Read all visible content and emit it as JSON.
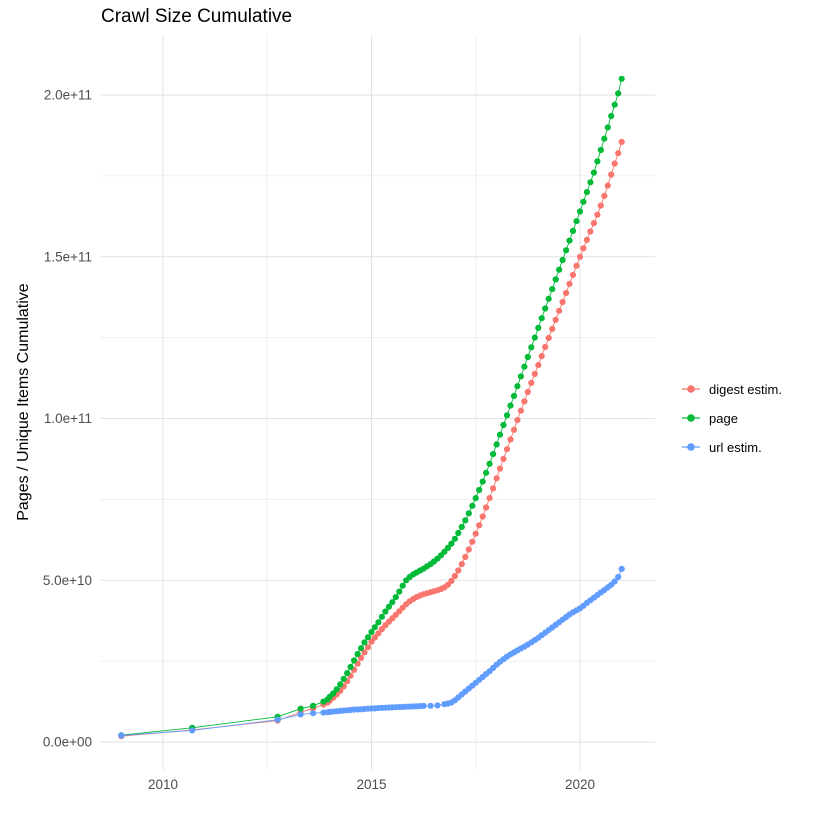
{
  "chart_data": {
    "type": "line",
    "title": "Crawl Size Cumulative",
    "xlabel": "",
    "ylabel": "Pages / Unique Items Cumulative",
    "grid": true,
    "legend_position": "right",
    "y_unit": "1e9 (point y-values are in billions; 205 = 2.05e+11)",
    "xlim": [
      2008.5,
      2021.8
    ],
    "ylim_e9": [
      -9,
      219
    ],
    "x_ticks": {
      "values": [
        2010,
        2015,
        2020
      ],
      "labels": [
        "2010",
        "2015",
        "2020"
      ]
    },
    "y_ticks": {
      "values_e9": [
        0,
        50,
        100,
        150,
        200
      ],
      "labels": [
        "0.0e+00",
        "5.0e+10",
        "1.0e+11",
        "1.5e+11",
        "2.0e+11"
      ]
    },
    "x_minor": [
      2012.5,
      2017.5
    ],
    "y_minor_e9": [
      25,
      75,
      125,
      175
    ],
    "colors": {
      "digest": "#F8766D",
      "page": "#00BA38",
      "url": "#619CFF",
      "grid_major": "#E2E2E2",
      "grid_minor": "#F0F0F0",
      "tick_text": "#4D4D4D"
    },
    "series": [
      {
        "name": "digest estim.",
        "color": "#F8766D",
        "points": [
          [
            2009,
            1.8
          ],
          [
            2010.7,
            3.7
          ],
          [
            2012.75,
            6.6
          ],
          [
            2013.3,
            9.2
          ],
          [
            2013.6,
            10.4
          ],
          [
            2013.85,
            11.6
          ],
          [
            2013.95,
            12.2
          ],
          [
            2014,
            12.8
          ],
          [
            2014.083,
            13.7
          ],
          [
            2014.167,
            14.7
          ],
          [
            2014.25,
            15.8
          ],
          [
            2014.333,
            17.2
          ],
          [
            2014.417,
            18.8
          ],
          [
            2014.5,
            20.5
          ],
          [
            2014.583,
            22.3
          ],
          [
            2014.667,
            24.2
          ],
          [
            2014.75,
            26
          ],
          [
            2014.833,
            27.7
          ],
          [
            2014.917,
            29.3
          ],
          [
            2015,
            31
          ],
          [
            2015.083,
            32.3
          ],
          [
            2015.167,
            33.6
          ],
          [
            2015.25,
            34.9
          ],
          [
            2015.333,
            36.1
          ],
          [
            2015.417,
            37.2
          ],
          [
            2015.5,
            38.2
          ],
          [
            2015.583,
            39.3
          ],
          [
            2015.667,
            40.4
          ],
          [
            2015.75,
            41.5
          ],
          [
            2015.833,
            42.6
          ],
          [
            2015.917,
            43.5
          ],
          [
            2016,
            44.2
          ],
          [
            2016.083,
            44.8
          ],
          [
            2016.167,
            45.3
          ],
          [
            2016.25,
            45.7
          ],
          [
            2016.333,
            46
          ],
          [
            2016.417,
            46.3
          ],
          [
            2016.5,
            46.6
          ],
          [
            2016.583,
            46.9
          ],
          [
            2016.667,
            47.3
          ],
          [
            2016.75,
            47.8
          ],
          [
            2016.833,
            48.6
          ],
          [
            2016.917,
            49.8
          ],
          [
            2017,
            51.3
          ],
          [
            2017.083,
            53
          ],
          [
            2017.167,
            55
          ],
          [
            2017.25,
            57.2
          ],
          [
            2017.333,
            59.5
          ],
          [
            2017.417,
            61.9
          ],
          [
            2017.5,
            64.4
          ],
          [
            2017.583,
            67
          ],
          [
            2017.667,
            69.7
          ],
          [
            2017.75,
            72.5
          ],
          [
            2017.833,
            75.4
          ],
          [
            2017.917,
            78.4
          ],
          [
            2018,
            81.5
          ],
          [
            2018.083,
            84.5
          ],
          [
            2018.167,
            87.5
          ],
          [
            2018.25,
            90.5
          ],
          [
            2018.333,
            93.5
          ],
          [
            2018.417,
            96.5
          ],
          [
            2018.5,
            99.5
          ],
          [
            2018.583,
            102.4
          ],
          [
            2018.667,
            105.3
          ],
          [
            2018.75,
            108.2
          ],
          [
            2018.833,
            111
          ],
          [
            2018.917,
            113.8
          ],
          [
            2019,
            116.5
          ],
          [
            2019.083,
            119.3
          ],
          [
            2019.167,
            122.1
          ],
          [
            2019.25,
            124.9
          ],
          [
            2019.333,
            127.7
          ],
          [
            2019.417,
            130.5
          ],
          [
            2019.5,
            133.3
          ],
          [
            2019.583,
            136
          ],
          [
            2019.667,
            138.8
          ],
          [
            2019.75,
            141.6
          ],
          [
            2019.833,
            144.4
          ],
          [
            2019.917,
            147.2
          ],
          [
            2020,
            150
          ],
          [
            2020.083,
            152.6
          ],
          [
            2020.167,
            155.2
          ],
          [
            2020.25,
            157.8
          ],
          [
            2020.333,
            160.4
          ],
          [
            2020.417,
            163
          ],
          [
            2020.5,
            165.8
          ],
          [
            2020.583,
            168.8
          ],
          [
            2020.667,
            172
          ],
          [
            2020.75,
            175.4
          ],
          [
            2020.833,
            178.8
          ],
          [
            2020.917,
            182
          ],
          [
            2021,
            185.5
          ]
        ]
      },
      {
        "name": "page",
        "color": "#00BA38",
        "points": [
          [
            2009,
            2.1
          ],
          [
            2010.7,
            4.4
          ],
          [
            2012.75,
            7.8
          ],
          [
            2013.3,
            10.3
          ],
          [
            2013.6,
            11.2
          ],
          [
            2013.85,
            12.5
          ],
          [
            2013.95,
            13.2
          ],
          [
            2014,
            14
          ],
          [
            2014.083,
            15
          ],
          [
            2014.167,
            16.3
          ],
          [
            2014.25,
            17.8
          ],
          [
            2014.333,
            19.5
          ],
          [
            2014.417,
            21.3
          ],
          [
            2014.5,
            23.2
          ],
          [
            2014.583,
            25.2
          ],
          [
            2014.667,
            27.2
          ],
          [
            2014.75,
            29
          ],
          [
            2014.833,
            30.8
          ],
          [
            2014.917,
            32.4
          ],
          [
            2015,
            34
          ],
          [
            2015.083,
            35.5
          ],
          [
            2015.167,
            37
          ],
          [
            2015.25,
            38.7
          ],
          [
            2015.333,
            40.3
          ],
          [
            2015.417,
            41.8
          ],
          [
            2015.5,
            43.2
          ],
          [
            2015.583,
            44.8
          ],
          [
            2015.667,
            46.5
          ],
          [
            2015.75,
            48.3
          ],
          [
            2015.833,
            50
          ],
          [
            2015.917,
            51
          ],
          [
            2016,
            51.8
          ],
          [
            2016.083,
            52.4
          ],
          [
            2016.167,
            53
          ],
          [
            2016.25,
            53.6
          ],
          [
            2016.333,
            54.3
          ],
          [
            2016.417,
            55
          ],
          [
            2016.5,
            55.8
          ],
          [
            2016.583,
            56.7
          ],
          [
            2016.667,
            57.7
          ],
          [
            2016.75,
            58.8
          ],
          [
            2016.833,
            60
          ],
          [
            2016.917,
            61.3
          ],
          [
            2017,
            62.8
          ],
          [
            2017.083,
            64.6
          ],
          [
            2017.167,
            66.5
          ],
          [
            2017.25,
            68.5
          ],
          [
            2017.333,
            70.7
          ],
          [
            2017.417,
            73
          ],
          [
            2017.5,
            75.4
          ],
          [
            2017.583,
            77.9
          ],
          [
            2017.667,
            80.5
          ],
          [
            2017.75,
            83.2
          ],
          [
            2017.833,
            86
          ],
          [
            2017.917,
            89
          ],
          [
            2018,
            92
          ],
          [
            2018.083,
            95
          ],
          [
            2018.167,
            98
          ],
          [
            2018.25,
            101
          ],
          [
            2018.333,
            104
          ],
          [
            2018.417,
            107
          ],
          [
            2018.5,
            110
          ],
          [
            2018.583,
            113
          ],
          [
            2018.667,
            116
          ],
          [
            2018.75,
            119
          ],
          [
            2018.833,
            122
          ],
          [
            2018.917,
            125
          ],
          [
            2019,
            128
          ],
          [
            2019.083,
            131
          ],
          [
            2019.167,
            134
          ],
          [
            2019.25,
            137
          ],
          [
            2019.333,
            140
          ],
          [
            2019.417,
            143
          ],
          [
            2019.5,
            146
          ],
          [
            2019.583,
            149
          ],
          [
            2019.667,
            152
          ],
          [
            2019.75,
            155
          ],
          [
            2019.833,
            158
          ],
          [
            2019.917,
            161
          ],
          [
            2020,
            164
          ],
          [
            2020.083,
            167
          ],
          [
            2020.167,
            170
          ],
          [
            2020.25,
            173
          ],
          [
            2020.333,
            176
          ],
          [
            2020.417,
            179.5
          ],
          [
            2020.5,
            183
          ],
          [
            2020.583,
            186.5
          ],
          [
            2020.667,
            190
          ],
          [
            2020.75,
            193.5
          ],
          [
            2020.833,
            197
          ],
          [
            2020.917,
            200.5
          ],
          [
            2021,
            205
          ]
        ]
      },
      {
        "name": "url estim.",
        "color": "#619CFF",
        "points": [
          [
            2009,
            2
          ],
          [
            2010.7,
            3.6
          ],
          [
            2012.75,
            6.9
          ],
          [
            2013.3,
            8.5
          ],
          [
            2013.6,
            8.9
          ],
          [
            2013.85,
            9.1
          ],
          [
            2013.95,
            9.2
          ],
          [
            2014,
            9.3
          ],
          [
            2014.083,
            9.4
          ],
          [
            2014.167,
            9.5
          ],
          [
            2014.25,
            9.6
          ],
          [
            2014.333,
            9.7
          ],
          [
            2014.417,
            9.8
          ],
          [
            2014.5,
            9.9
          ],
          [
            2014.583,
            10
          ],
          [
            2014.667,
            10.05
          ],
          [
            2014.75,
            10.1
          ],
          [
            2014.833,
            10.2
          ],
          [
            2014.917,
            10.3
          ],
          [
            2015,
            10.35
          ],
          [
            2015.083,
            10.4
          ],
          [
            2015.167,
            10.5
          ],
          [
            2015.25,
            10.55
          ],
          [
            2015.333,
            10.6
          ],
          [
            2015.417,
            10.65
          ],
          [
            2015.5,
            10.7
          ],
          [
            2015.583,
            10.75
          ],
          [
            2015.667,
            10.8
          ],
          [
            2015.75,
            10.85
          ],
          [
            2015.833,
            10.9
          ],
          [
            2015.917,
            10.95
          ],
          [
            2016,
            11
          ],
          [
            2016.083,
            11.05
          ],
          [
            2016.167,
            11.1
          ],
          [
            2016.25,
            11.15
          ],
          [
            2016.417,
            11.2
          ],
          [
            2016.583,
            11.3
          ],
          [
            2016.75,
            11.7
          ],
          [
            2016.833,
            11.9
          ],
          [
            2016.917,
            12.2
          ],
          [
            2017,
            12.9
          ],
          [
            2017.083,
            13.8
          ],
          [
            2017.167,
            14.7
          ],
          [
            2017.25,
            15.6
          ],
          [
            2017.333,
            16.5
          ],
          [
            2017.417,
            17.4
          ],
          [
            2017.5,
            18.3
          ],
          [
            2017.583,
            19.2
          ],
          [
            2017.667,
            20.1
          ],
          [
            2017.75,
            21
          ],
          [
            2017.833,
            21.9
          ],
          [
            2017.917,
            22.9
          ],
          [
            2018,
            23.9
          ],
          [
            2018.083,
            24.8
          ],
          [
            2018.167,
            25.6
          ],
          [
            2018.25,
            26.4
          ],
          [
            2018.333,
            27.1
          ],
          [
            2018.417,
            27.7
          ],
          [
            2018.5,
            28.3
          ],
          [
            2018.583,
            28.9
          ],
          [
            2018.667,
            29.5
          ],
          [
            2018.75,
            30.1
          ],
          [
            2018.833,
            30.8
          ],
          [
            2018.917,
            31.5
          ],
          [
            2019,
            32.2
          ],
          [
            2019.083,
            33
          ],
          [
            2019.167,
            33.8
          ],
          [
            2019.25,
            34.6
          ],
          [
            2019.333,
            35.4
          ],
          [
            2019.417,
            36.2
          ],
          [
            2019.5,
            37
          ],
          [
            2019.583,
            37.8
          ],
          [
            2019.667,
            38.6
          ],
          [
            2019.75,
            39.4
          ],
          [
            2019.833,
            40.1
          ],
          [
            2019.917,
            40.7
          ],
          [
            2020,
            41.3
          ],
          [
            2020.083,
            42.1
          ],
          [
            2020.167,
            43
          ],
          [
            2020.25,
            43.8
          ],
          [
            2020.333,
            44.6
          ],
          [
            2020.417,
            45.4
          ],
          [
            2020.5,
            46.2
          ],
          [
            2020.583,
            47
          ],
          [
            2020.667,
            47.8
          ],
          [
            2020.75,
            48.6
          ],
          [
            2020.833,
            49.6
          ],
          [
            2020.917,
            51
          ],
          [
            2021,
            53.5
          ]
        ]
      }
    ]
  }
}
